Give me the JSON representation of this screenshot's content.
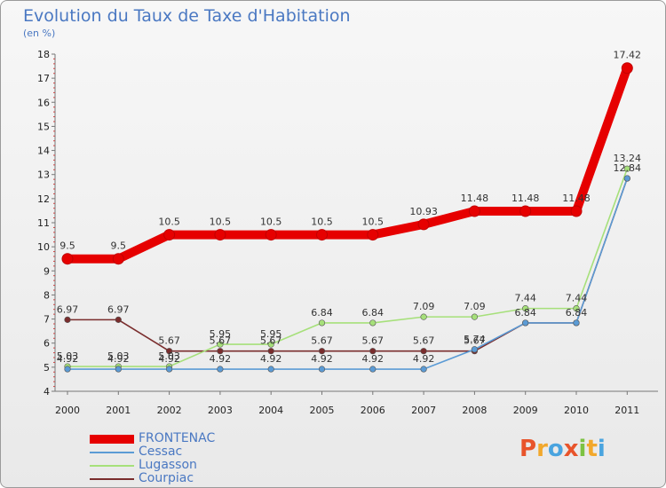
{
  "header": {
    "title": "Evolution du Taux de Taxe d'Habitation",
    "subtitle": "(en %)"
  },
  "logo": {
    "letters": [
      "P",
      "r",
      "o",
      "x",
      "i",
      "t",
      "i"
    ],
    "colors": [
      "#e8542b",
      "#f2a82c",
      "#4aa4df",
      "#e8542b",
      "#7cc242",
      "#f2a82c",
      "#4aa4df"
    ]
  },
  "chart_data": {
    "type": "line",
    "title": "Evolution du Taux de Taxe d'Habitation",
    "subtitle": "(en %)",
    "xlabel": "",
    "ylabel": "",
    "x": [
      "2000",
      "2001",
      "2002",
      "2003",
      "2004",
      "2005",
      "2006",
      "2007",
      "2008",
      "2009",
      "2010",
      "2011"
    ],
    "ylim": [
      4,
      18
    ],
    "yticks": [
      4,
      5,
      6,
      7,
      8,
      9,
      10,
      11,
      12,
      13,
      14,
      15,
      16,
      17,
      18
    ],
    "grid": false,
    "legend_position": "bottom-left",
    "series": [
      {
        "name": "FRONTENAC",
        "color": "#e60000",
        "values": [
          9.5,
          9.5,
          10.5,
          10.5,
          10.5,
          10.5,
          10.5,
          10.93,
          11.48,
          11.48,
          11.48,
          17.42
        ],
        "labels": [
          "9.5",
          "9.5",
          "10.5",
          "10.5",
          "10.5",
          "10.5",
          "10.5",
          "10.93",
          "11.48",
          "11.48",
          "11.48",
          "17.42"
        ]
      },
      {
        "name": "Cessac",
        "color": "#5b9bd5",
        "values": [
          4.92,
          4.92,
          4.92,
          4.92,
          4.92,
          4.92,
          4.92,
          4.92,
          5.74,
          6.84,
          6.84,
          12.84
        ],
        "labels": [
          "4.92",
          "4.92",
          "4.92",
          "4.92",
          "4.92",
          "4.92",
          "4.92",
          "4.92",
          "5.74",
          "",
          "",
          ""
        ]
      },
      {
        "name": "Lugasson",
        "color": "#a6e07a",
        "values": [
          5.03,
          5.03,
          5.03,
          5.95,
          5.95,
          6.84,
          6.84,
          7.09,
          7.09,
          7.44,
          7.44,
          13.24
        ],
        "labels": [
          "5.03",
          "5.03",
          "5.03",
          "5.95",
          "5.95",
          "6.84",
          "6.84",
          "7.09",
          "7.09",
          "7.44",
          "7.44",
          "13.24"
        ]
      },
      {
        "name": "Courpiac",
        "color": "#7a2d2d",
        "values": [
          6.97,
          6.97,
          5.67,
          5.67,
          5.67,
          5.67,
          5.67,
          5.67,
          5.67,
          6.84,
          6.84,
          12.84
        ],
        "labels": [
          "6.97",
          "6.97",
          "5.67",
          "5.67",
          "5.67",
          "5.67",
          "5.67",
          "5.67",
          "5.67",
          "6.84",
          "6.84",
          "12.84"
        ]
      }
    ]
  }
}
